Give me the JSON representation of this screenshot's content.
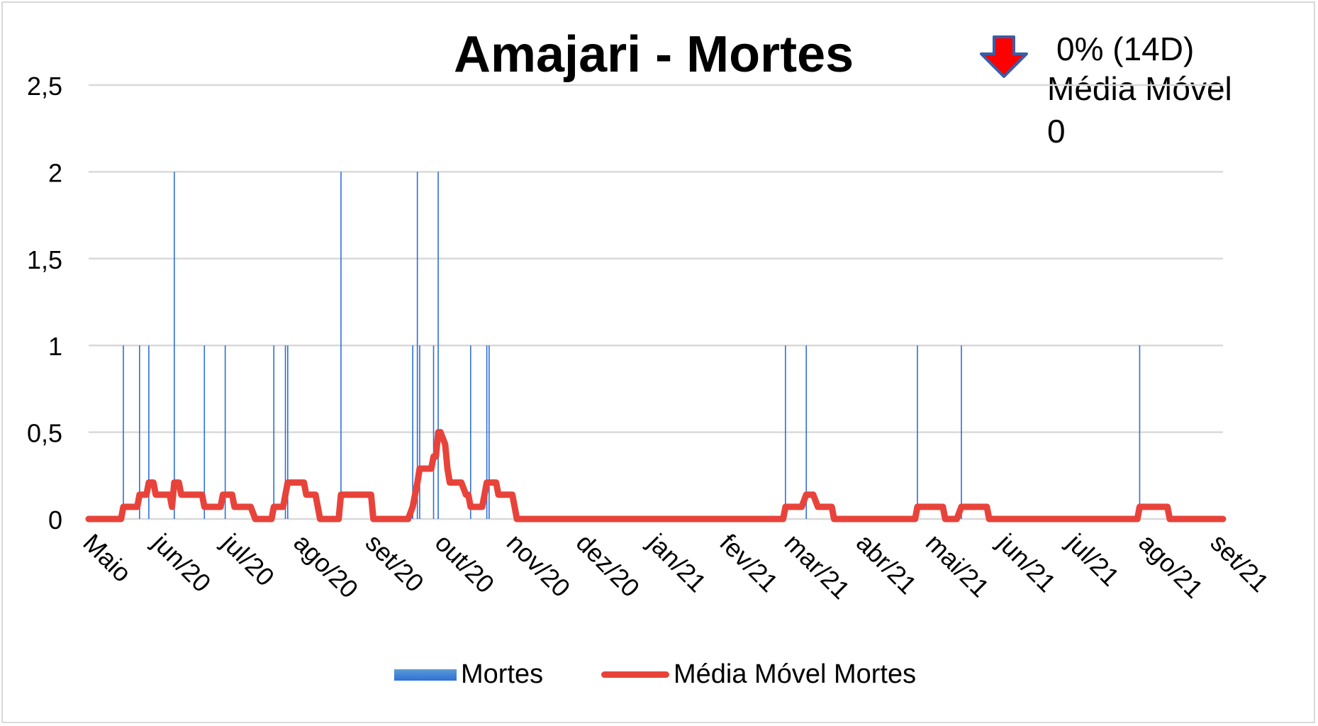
{
  "header": {
    "title": "Amajari - Mortes",
    "change_text": "0% (14D)",
    "moving_average_label": "Média Móvel",
    "moving_average_value": "0"
  },
  "colors": {
    "bars": "#2e6fd8",
    "line": "#e8433a",
    "grid": "#d9d9d9",
    "arrow_fill": "#ff0000",
    "arrow_stroke": "#3a5da8"
  },
  "icons": {
    "trend": "down-arrow-icon"
  },
  "chart_data": {
    "type": "bar",
    "title": "Amajari - Mortes",
    "xlabel": "",
    "ylabel": "",
    "ylim": [
      0,
      2.5
    ],
    "yticks": [
      "0",
      "0,5",
      "1",
      "1,5",
      "2",
      "2,5"
    ],
    "ytick_values": [
      0,
      0.5,
      1,
      1.5,
      2,
      2.5
    ],
    "x_range": [
      0,
      490
    ],
    "x_tick_labels": [
      "Maio",
      "jun/20",
      "jul/20",
      "ago/20",
      "set/20",
      "out/20",
      "nov/20",
      "dez/20",
      "jan/21",
      "fev/21",
      "mar/21",
      "abr/21",
      "mai/21",
      "jun/21",
      "jul/21",
      "ago/21",
      "set/21"
    ],
    "x_tick_positions": [
      0,
      30,
      60,
      91,
      122,
      152,
      183,
      213,
      244,
      275,
      303,
      334,
      364,
      395,
      425,
      456,
      487
    ],
    "grid": true,
    "legend_position": "bottom",
    "series": [
      {
        "name": "Mortes",
        "type": "bar",
        "points": [
          [
            15,
            1
          ],
          [
            22,
            1
          ],
          [
            26,
            1
          ],
          [
            37,
            2
          ],
          [
            50,
            1
          ],
          [
            59,
            1
          ],
          [
            80,
            1
          ],
          [
            85,
            1
          ],
          [
            86,
            1
          ],
          [
            109,
            2
          ],
          [
            140,
            1
          ],
          [
            142,
            2
          ],
          [
            143,
            1
          ],
          [
            149,
            1
          ],
          [
            151,
            2
          ],
          [
            165,
            1
          ],
          [
            172,
            1
          ],
          [
            173,
            1
          ],
          [
            301,
            1
          ],
          [
            310,
            1
          ],
          [
            358,
            1
          ],
          [
            377,
            1
          ],
          [
            454,
            1
          ]
        ]
      },
      {
        "name": "Média Móvel Mortes",
        "type": "line",
        "points": [
          [
            0,
            0
          ],
          [
            14,
            0
          ],
          [
            15,
            0.07
          ],
          [
            21,
            0.07
          ],
          [
            22,
            0.14
          ],
          [
            25,
            0.14
          ],
          [
            26,
            0.21
          ],
          [
            28,
            0.21
          ],
          [
            29,
            0.14
          ],
          [
            35,
            0.14
          ],
          [
            36,
            0.07
          ],
          [
            37,
            0.21
          ],
          [
            39,
            0.21
          ],
          [
            40,
            0.14
          ],
          [
            49,
            0.14
          ],
          [
            50,
            0.07
          ],
          [
            57,
            0.07
          ],
          [
            58,
            0.14
          ],
          [
            62,
            0.14
          ],
          [
            63,
            0.07
          ],
          [
            70,
            0.07
          ],
          [
            72,
            0
          ],
          [
            79,
            0
          ],
          [
            80,
            0.07
          ],
          [
            84,
            0.07
          ],
          [
            86,
            0.21
          ],
          [
            93,
            0.21
          ],
          [
            94,
            0.14
          ],
          [
            98,
            0.14
          ],
          [
            100,
            0
          ],
          [
            108,
            0
          ],
          [
            109,
            0.14
          ],
          [
            122,
            0.14
          ],
          [
            123,
            0
          ],
          [
            138,
            0
          ],
          [
            140,
            0.07
          ],
          [
            142,
            0.21
          ],
          [
            143,
            0.29
          ],
          [
            148,
            0.29
          ],
          [
            149,
            0.36
          ],
          [
            150,
            0.36
          ],
          [
            151,
            0.5
          ],
          [
            152,
            0.5
          ],
          [
            154,
            0.43
          ],
          [
            155,
            0.29
          ],
          [
            156,
            0.21
          ],
          [
            161,
            0.21
          ],
          [
            163,
            0.14
          ],
          [
            164,
            0.14
          ],
          [
            165,
            0.07
          ],
          [
            170,
            0.07
          ],
          [
            171,
            0.14
          ],
          [
            172,
            0.21
          ],
          [
            176,
            0.21
          ],
          [
            177,
            0.14
          ],
          [
            183,
            0.14
          ],
          [
            185,
            0
          ],
          [
            300,
            0
          ],
          [
            301,
            0.07
          ],
          [
            308,
            0.07
          ],
          [
            310,
            0.14
          ],
          [
            313,
            0.14
          ],
          [
            315,
            0.07
          ],
          [
            321,
            0.07
          ],
          [
            322,
            0
          ],
          [
            357,
            0
          ],
          [
            358,
            0.07
          ],
          [
            369,
            0.07
          ],
          [
            370,
            0
          ],
          [
            375,
            0
          ],
          [
            377,
            0.07
          ],
          [
            388,
            0.07
          ],
          [
            389,
            0
          ],
          [
            453,
            0
          ],
          [
            454,
            0.07
          ],
          [
            466,
            0.07
          ],
          [
            467,
            0
          ],
          [
            490,
            0
          ]
        ]
      }
    ]
  }
}
